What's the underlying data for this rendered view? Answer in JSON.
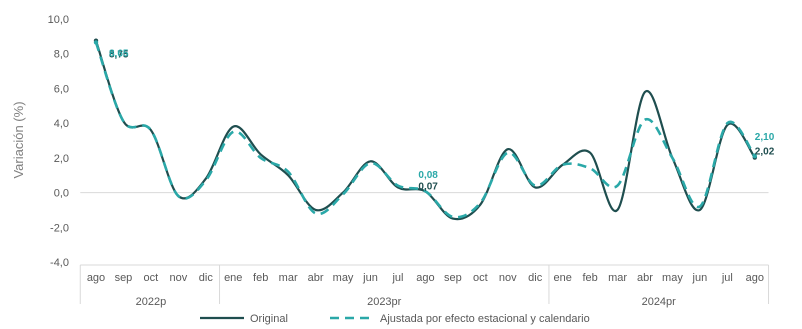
{
  "chart_data": {
    "type": "line",
    "title": "",
    "ylabel": "Variación (%)",
    "ylim": [
      -4.0,
      10.0
    ],
    "yticks": [
      "10,0",
      "8,0",
      "6,0",
      "4,0",
      "2,0",
      "0,0",
      "-2,0",
      "-4,0"
    ],
    "categories": [
      "ago",
      "sep",
      "oct",
      "nov",
      "dic",
      "ene",
      "feb",
      "mar",
      "abr",
      "may",
      "jun",
      "jul",
      "ago",
      "sep",
      "oct",
      "nov",
      "dic",
      "ene",
      "feb",
      "mar",
      "abr",
      "may",
      "jun",
      "jul",
      "ago"
    ],
    "year_groups": [
      {
        "label": "2022p",
        "count": 5
      },
      {
        "label": "2023pr",
        "count": 12
      },
      {
        "label": "2024pr",
        "count": 8
      }
    ],
    "series": [
      {
        "name": "Original",
        "color": "#1f4e4f",
        "style": "solid",
        "values": [
          8.75,
          4.1,
          3.6,
          -0.2,
          0.8,
          3.8,
          2.2,
          1.0,
          -1.0,
          0.0,
          1.8,
          0.3,
          0.07,
          -1.5,
          -0.7,
          2.5,
          0.3,
          1.6,
          2.3,
          -1.0,
          5.8,
          2.0,
          -1.0,
          3.9,
          2.02
        ]
      },
      {
        "name": "Ajustada por efecto estacional y calendario",
        "color": "#2aa8a8",
        "style": "dashed",
        "values": [
          8.65,
          4.1,
          3.6,
          -0.2,
          0.7,
          3.5,
          2.0,
          1.2,
          -1.2,
          -0.1,
          1.7,
          0.4,
          0.08,
          -1.4,
          -0.6,
          2.3,
          0.4,
          1.6,
          1.4,
          0.4,
          4.2,
          2.0,
          -0.8,
          4.0,
          2.1
        ]
      }
    ],
    "annotations": [
      {
        "text": "8,75",
        "series": 0,
        "index": 0
      },
      {
        "text": "8,65",
        "series": 1,
        "index": 0
      },
      {
        "text": "0,08",
        "series": 1,
        "index": 12
      },
      {
        "text": "0,07",
        "series": 0,
        "index": 12
      },
      {
        "text": "2,10",
        "series": 1,
        "index": 24
      },
      {
        "text": "2,02",
        "series": 0,
        "index": 24
      }
    ],
    "grid": false,
    "legend_position": "bottom"
  }
}
